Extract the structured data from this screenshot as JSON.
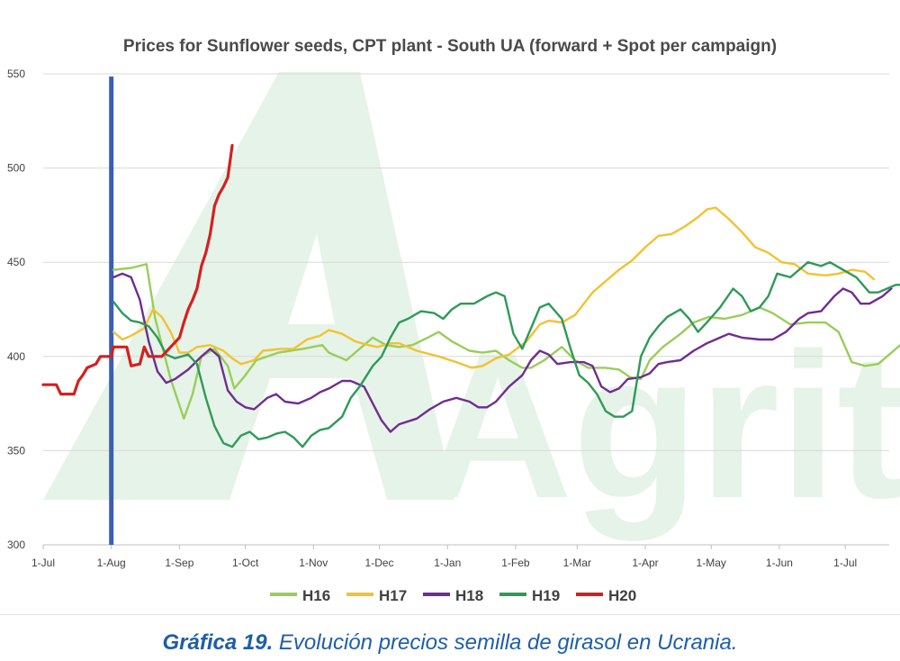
{
  "caption": {
    "prefix": "Gráfica 19.",
    "text": " Evolución precios semilla de girasol en Ucrania."
  },
  "watermark": {
    "text": "Agritel",
    "color": "#e3f1e6"
  },
  "chart_data": {
    "type": "line",
    "title": "Prices for Sunflower seeds, CPT plant - South UA (forward + Spot per campaign)",
    "xlabel": "",
    "ylabel": "",
    "x_unit": "days since 1-Jul",
    "x_range": [
      0,
      385
    ],
    "ylim": [
      300,
      550
    ],
    "yticks": [
      300,
      350,
      400,
      450,
      500,
      550
    ],
    "xticks": [
      {
        "label": "1-Jul",
        "x": 0
      },
      {
        "label": "1-Aug",
        "x": 31
      },
      {
        "label": "1-Sep",
        "x": 62
      },
      {
        "label": "1-Oct",
        "x": 92
      },
      {
        "label": "1-Nov",
        "x": 123
      },
      {
        "label": "1-Dec",
        "x": 153
      },
      {
        "label": "1-Jan",
        "x": 184
      },
      {
        "label": "1-Feb",
        "x": 215
      },
      {
        "label": "1-Mar",
        "x": 243
      },
      {
        "label": "1-Apr",
        "x": 274
      },
      {
        "label": "1-May",
        "x": 304
      },
      {
        "label": "1-Jun",
        "x": 335
      },
      {
        "label": "1-Jul",
        "x": 365
      }
    ],
    "grid": "horizontal",
    "legend_position": "bottom",
    "marker_line": {
      "x": 31,
      "color": "#3a5fb0"
    },
    "series": [
      {
        "name": "H16",
        "color": "#9acd5a",
        "points": [
          [
            32,
            446
          ],
          [
            40,
            447
          ],
          [
            47,
            449
          ],
          [
            51,
            420
          ],
          [
            58,
            388
          ],
          [
            64,
            367
          ],
          [
            68,
            380
          ],
          [
            72,
            400
          ],
          [
            78,
            404
          ],
          [
            84,
            395
          ],
          [
            87,
            383
          ],
          [
            92,
            390
          ],
          [
            97,
            398
          ],
          [
            107,
            402
          ],
          [
            118,
            404
          ],
          [
            127,
            406
          ],
          [
            130,
            402
          ],
          [
            138,
            398
          ],
          [
            146,
            406
          ],
          [
            150,
            410
          ],
          [
            156,
            406
          ],
          [
            162,
            405
          ],
          [
            168,
            406
          ],
          [
            175,
            410
          ],
          [
            180,
            413
          ],
          [
            186,
            408
          ],
          [
            194,
            403
          ],
          [
            200,
            402
          ],
          [
            206,
            403
          ],
          [
            212,
            398
          ],
          [
            218,
            394
          ],
          [
            222,
            394
          ],
          [
            228,
            398
          ],
          [
            236,
            405
          ],
          [
            242,
            398
          ],
          [
            248,
            394
          ],
          [
            256,
            394
          ],
          [
            262,
            393
          ],
          [
            267,
            389
          ],
          [
            272,
            388
          ],
          [
            276,
            398
          ],
          [
            282,
            405
          ],
          [
            290,
            412
          ],
          [
            296,
            418
          ],
          [
            303,
            421
          ],
          [
            310,
            420
          ],
          [
            318,
            422
          ],
          [
            326,
            426
          ],
          [
            332,
            423
          ],
          [
            340,
            417
          ],
          [
            348,
            418
          ],
          [
            356,
            418
          ],
          [
            362,
            413
          ],
          [
            368,
            397
          ],
          [
            374,
            395
          ],
          [
            380,
            396
          ],
          [
            386,
            402
          ],
          [
            392,
            408
          ]
        ]
      },
      {
        "name": "H17",
        "color": "#f2c230",
        "points": [
          [
            32,
            413
          ],
          [
            36,
            409
          ],
          [
            40,
            411
          ],
          [
            46,
            415
          ],
          [
            50,
            425
          ],
          [
            54,
            421
          ],
          [
            58,
            413
          ],
          [
            62,
            402
          ],
          [
            66,
            402
          ],
          [
            70,
            405
          ],
          [
            76,
            406
          ],
          [
            82,
            403
          ],
          [
            86,
            399
          ],
          [
            90,
            396
          ],
          [
            96,
            398
          ],
          [
            100,
            403
          ],
          [
            108,
            404
          ],
          [
            114,
            404
          ],
          [
            120,
            409
          ],
          [
            126,
            411
          ],
          [
            130,
            414
          ],
          [
            136,
            412
          ],
          [
            142,
            408
          ],
          [
            148,
            406
          ],
          [
            152,
            405
          ],
          [
            158,
            407
          ],
          [
            162,
            407
          ],
          [
            170,
            403
          ],
          [
            180,
            400
          ],
          [
            188,
            397
          ],
          [
            195,
            394
          ],
          [
            200,
            395
          ],
          [
            206,
            399
          ],
          [
            212,
            401
          ],
          [
            220,
            408
          ],
          [
            226,
            417
          ],
          [
            230,
            419
          ],
          [
            236,
            418
          ],
          [
            242,
            422
          ],
          [
            250,
            434
          ],
          [
            256,
            440
          ],
          [
            262,
            446
          ],
          [
            268,
            451
          ],
          [
            274,
            458
          ],
          [
            280,
            464
          ],
          [
            286,
            465
          ],
          [
            292,
            469
          ],
          [
            298,
            474
          ],
          [
            302,
            478
          ],
          [
            306,
            479
          ],
          [
            312,
            473
          ],
          [
            318,
            466
          ],
          [
            324,
            458
          ],
          [
            330,
            455
          ],
          [
            336,
            450
          ],
          [
            342,
            449
          ],
          [
            348,
            444
          ],
          [
            356,
            443
          ],
          [
            362,
            444
          ],
          [
            368,
            446
          ],
          [
            374,
            445
          ],
          [
            378,
            441
          ]
        ]
      },
      {
        "name": "H18",
        "color": "#6f2d91",
        "points": [
          [
            32,
            442
          ],
          [
            36,
            444
          ],
          [
            40,
            442
          ],
          [
            44,
            430
          ],
          [
            48,
            408
          ],
          [
            52,
            392
          ],
          [
            56,
            386
          ],
          [
            60,
            388
          ],
          [
            66,
            393
          ],
          [
            72,
            400
          ],
          [
            76,
            404
          ],
          [
            80,
            400
          ],
          [
            84,
            382
          ],
          [
            88,
            376
          ],
          [
            92,
            373
          ],
          [
            96,
            372
          ],
          [
            100,
            376
          ],
          [
            102,
            378
          ],
          [
            106,
            380
          ],
          [
            110,
            376
          ],
          [
            116,
            375
          ],
          [
            122,
            378
          ],
          [
            126,
            381
          ],
          [
            130,
            383
          ],
          [
            136,
            387
          ],
          [
            140,
            387
          ],
          [
            146,
            384
          ],
          [
            150,
            375
          ],
          [
            154,
            366
          ],
          [
            158,
            360
          ],
          [
            162,
            364
          ],
          [
            170,
            367
          ],
          [
            176,
            372
          ],
          [
            182,
            376
          ],
          [
            188,
            378
          ],
          [
            194,
            376
          ],
          [
            198,
            373
          ],
          [
            202,
            373
          ],
          [
            206,
            376
          ],
          [
            212,
            384
          ],
          [
            218,
            390
          ],
          [
            222,
            398
          ],
          [
            226,
            403
          ],
          [
            230,
            401
          ],
          [
            234,
            396
          ],
          [
            240,
            397
          ],
          [
            246,
            397
          ],
          [
            250,
            395
          ],
          [
            254,
            384
          ],
          [
            258,
            381
          ],
          [
            262,
            383
          ],
          [
            266,
            388
          ],
          [
            272,
            389
          ],
          [
            276,
            391
          ],
          [
            280,
            396
          ],
          [
            284,
            397
          ],
          [
            290,
            398
          ],
          [
            296,
            403
          ],
          [
            302,
            407
          ],
          [
            308,
            410
          ],
          [
            312,
            412
          ],
          [
            318,
            410
          ],
          [
            326,
            409
          ],
          [
            332,
            409
          ],
          [
            338,
            413
          ],
          [
            344,
            420
          ],
          [
            348,
            423
          ],
          [
            354,
            424
          ],
          [
            360,
            432
          ],
          [
            364,
            436
          ],
          [
            368,
            434
          ],
          [
            372,
            428
          ],
          [
            376,
            428
          ],
          [
            382,
            432
          ],
          [
            386,
            436
          ]
        ]
      },
      {
        "name": "H19",
        "color": "#2e9a58",
        "points": [
          [
            32,
            429
          ],
          [
            36,
            423
          ],
          [
            40,
            419
          ],
          [
            44,
            418
          ],
          [
            48,
            416
          ],
          [
            52,
            410
          ],
          [
            56,
            401
          ],
          [
            60,
            399
          ],
          [
            66,
            401
          ],
          [
            70,
            396
          ],
          [
            74,
            378
          ],
          [
            78,
            363
          ],
          [
            82,
            354
          ],
          [
            86,
            352
          ],
          [
            90,
            358
          ],
          [
            94,
            360
          ],
          [
            98,
            356
          ],
          [
            102,
            357
          ],
          [
            106,
            359
          ],
          [
            110,
            360
          ],
          [
            114,
            357
          ],
          [
            118,
            352
          ],
          [
            122,
            358
          ],
          [
            126,
            361
          ],
          [
            130,
            362
          ],
          [
            136,
            368
          ],
          [
            140,
            378
          ],
          [
            144,
            384
          ],
          [
            150,
            395
          ],
          [
            154,
            400
          ],
          [
            158,
            410
          ],
          [
            162,
            418
          ],
          [
            166,
            420
          ],
          [
            172,
            424
          ],
          [
            178,
            423
          ],
          [
            182,
            420
          ],
          [
            186,
            425
          ],
          [
            190,
            428
          ],
          [
            196,
            428
          ],
          [
            202,
            432
          ],
          [
            206,
            434
          ],
          [
            210,
            432
          ],
          [
            214,
            412
          ],
          [
            218,
            404
          ],
          [
            222,
            415
          ],
          [
            226,
            426
          ],
          [
            230,
            428
          ],
          [
            236,
            420
          ],
          [
            240,
            404
          ],
          [
            244,
            390
          ],
          [
            248,
            386
          ],
          [
            252,
            380
          ],
          [
            256,
            371
          ],
          [
            260,
            368
          ],
          [
            264,
            368
          ],
          [
            268,
            371
          ],
          [
            272,
            400
          ],
          [
            276,
            410
          ],
          [
            280,
            416
          ],
          [
            284,
            421
          ],
          [
            290,
            425
          ],
          [
            294,
            420
          ],
          [
            298,
            413
          ],
          [
            302,
            418
          ],
          [
            308,
            426
          ],
          [
            314,
            436
          ],
          [
            318,
            432
          ],
          [
            322,
            424
          ],
          [
            326,
            426
          ],
          [
            330,
            432
          ],
          [
            334,
            444
          ],
          [
            340,
            442
          ],
          [
            344,
            446
          ],
          [
            348,
            450
          ],
          [
            354,
            448
          ],
          [
            358,
            450
          ],
          [
            364,
            446
          ],
          [
            370,
            442
          ],
          [
            376,
            434
          ],
          [
            380,
            434
          ],
          [
            384,
            436
          ],
          [
            388,
            438
          ],
          [
            392,
            438
          ]
        ]
      },
      {
        "name": "H20",
        "color": "#d42020",
        "points": [
          [
            0,
            385
          ],
          [
            6,
            385
          ],
          [
            8,
            380
          ],
          [
            14,
            380
          ],
          [
            16,
            387
          ],
          [
            18,
            390
          ],
          [
            20,
            394
          ],
          [
            24,
            396
          ],
          [
            26,
            400
          ],
          [
            31,
            400
          ],
          [
            32,
            405
          ],
          [
            38,
            405
          ],
          [
            40,
            395
          ],
          [
            44,
            396
          ],
          [
            46,
            405
          ],
          [
            48,
            400
          ],
          [
            50,
            400
          ],
          [
            54,
            400
          ],
          [
            58,
            405
          ],
          [
            62,
            410
          ],
          [
            64,
            418
          ],
          [
            66,
            425
          ],
          [
            68,
            430
          ],
          [
            70,
            436
          ],
          [
            72,
            448
          ],
          [
            74,
            455
          ],
          [
            76,
            465
          ],
          [
            78,
            480
          ],
          [
            80,
            486
          ],
          [
            82,
            490
          ],
          [
            84,
            495
          ],
          [
            86,
            512
          ]
        ]
      }
    ]
  }
}
